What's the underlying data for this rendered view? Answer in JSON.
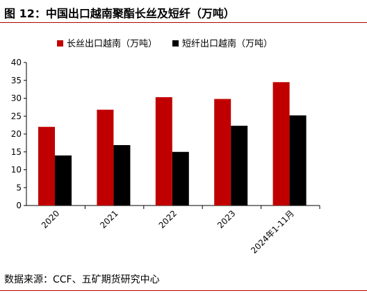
{
  "figure": {
    "title": "图 12：中国出口越南聚酯长丝及短纤（万吨）",
    "source": "数据来源：CCF、五矿期货研究中心"
  },
  "chart_data": {
    "type": "bar",
    "categories": [
      "2020",
      "2021",
      "2022",
      "2023",
      "2024年1-11月"
    ],
    "series": [
      {
        "name": "长丝出口越南（万吨）",
        "color": "#c00000",
        "values": [
          22.0,
          26.8,
          30.3,
          29.8,
          34.5
        ]
      },
      {
        "name": "短纤出口越南（万吨）",
        "color": "#000000",
        "values": [
          14.0,
          16.9,
          15.0,
          22.3,
          25.2
        ]
      }
    ],
    "ylim": [
      0,
      40
    ],
    "yticks": [
      0,
      5,
      10,
      15,
      20,
      25,
      30,
      35,
      40
    ],
    "grid": false,
    "legend_position": "top"
  }
}
